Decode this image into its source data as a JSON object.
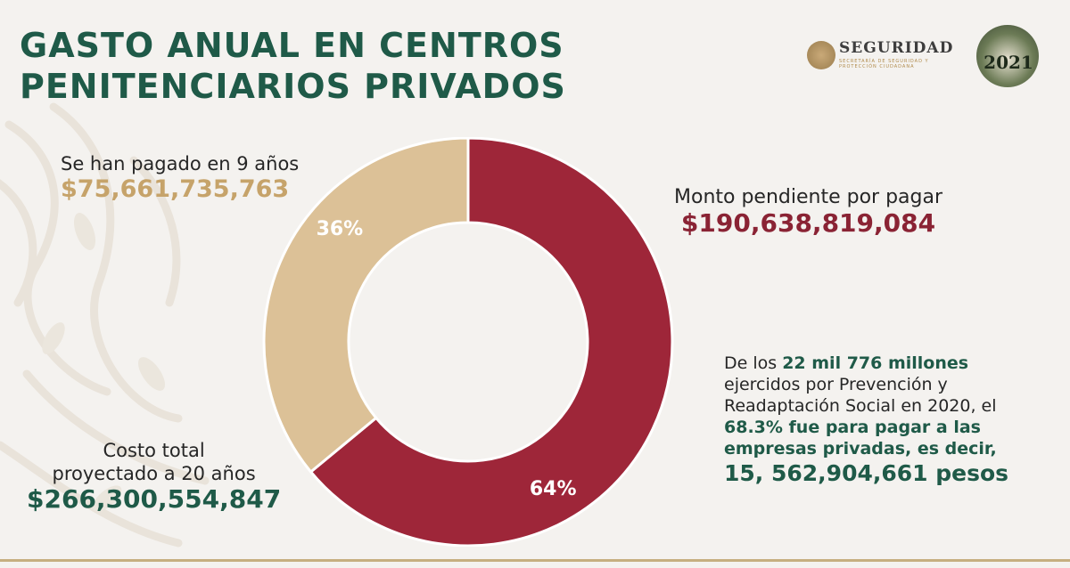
{
  "title": {
    "line1": "GASTO ANUAL EN CENTROS",
    "line2": "PENITENCIARIOS PRIVADOS"
  },
  "logos": {
    "seguridad": "SEGURIDAD",
    "seguridad_sub": "SECRETARÍA DE SEGURIDAD Y PROTECCIÓN CIUDADANA",
    "year": "2021"
  },
  "paid": {
    "label": "Se han pagado en 9 años",
    "amount": "$75,661,735,763"
  },
  "pending": {
    "label": "Monto pendiente por pagar",
    "amount": "$190,638,819,084"
  },
  "total": {
    "label_line1": "Costo total",
    "label_line2": "proyectado a 20 años",
    "amount": "$266,300,554,847"
  },
  "note": {
    "p1": "De los ",
    "b1": "22 mil 776 millones",
    "p2": " ejercidos por Prevención y Readaptación Social en 2020, el ",
    "b2": "68.3% fue para pagar a las empresas privadas, es decir,",
    "big": "15, 562,904,661 pesos"
  },
  "chart_data": {
    "type": "pie",
    "donut": true,
    "slices": [
      {
        "label": "64%",
        "value": 64,
        "color": "#9e2639"
      },
      {
        "label": "36%",
        "value": 36,
        "color": "#dcc197"
      }
    ]
  }
}
